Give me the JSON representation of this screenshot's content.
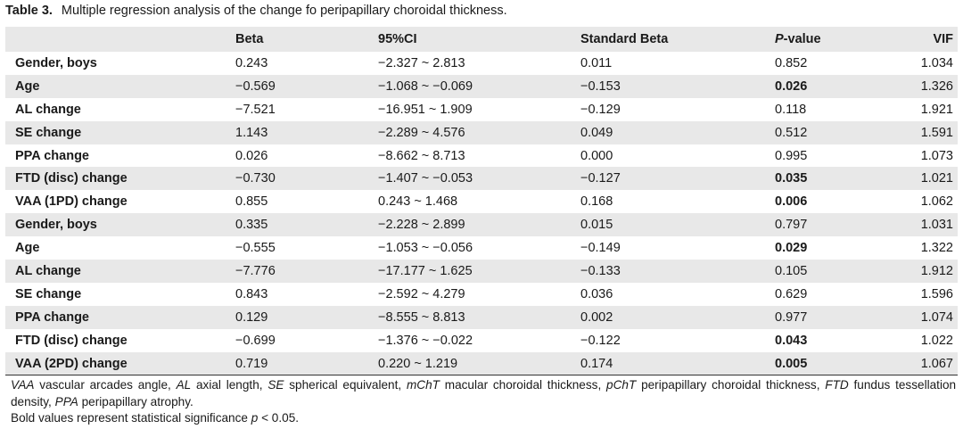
{
  "caption": {
    "label": "Table 3.",
    "title": "Multiple regression analysis of the change fo peripapillary choroidal thickness."
  },
  "table": {
    "headers": [
      "",
      "Beta",
      "95%CI",
      "Standard Beta",
      "value",
      "VIF"
    ],
    "header_pvalue_prefix": "P",
    "rows": [
      {
        "variable": "Gender, boys",
        "beta": "0.243",
        "ci": "−2.327 ~ 2.813",
        "std_beta": "0.011",
        "p": "0.852",
        "p_bold": false,
        "vif": "1.034"
      },
      {
        "variable": "Age",
        "beta": "−0.569",
        "ci": "−1.068 ~ −0.069",
        "std_beta": "−0.153",
        "p": "0.026",
        "p_bold": true,
        "vif": "1.326"
      },
      {
        "variable": "AL change",
        "beta": "−7.521",
        "ci": "−16.951 ~ 1.909",
        "std_beta": "−0.129",
        "p": "0.118",
        "p_bold": false,
        "vif": "1.921"
      },
      {
        "variable": "SE change",
        "beta": "1.143",
        "ci": "−2.289 ~ 4.576",
        "std_beta": "0.049",
        "p": "0.512",
        "p_bold": false,
        "vif": "1.591"
      },
      {
        "variable": "PPA change",
        "beta": "0.026",
        "ci": "−8.662 ~ 8.713",
        "std_beta": "0.000",
        "p": "0.995",
        "p_bold": false,
        "vif": "1.073"
      },
      {
        "variable": "FTD (disc) change",
        "beta": "−0.730",
        "ci": "−1.407 ~ −0.053",
        "std_beta": "−0.127",
        "p": "0.035",
        "p_bold": true,
        "vif": "1.021"
      },
      {
        "variable": "VAA (1PD) change",
        "beta": "0.855",
        "ci": "0.243 ~ 1.468",
        "std_beta": "0.168",
        "p": "0.006",
        "p_bold": true,
        "vif": "1.062"
      },
      {
        "variable": "Gender, boys",
        "beta": "0.335",
        "ci": "−2.228 ~ 2.899",
        "std_beta": "0.015",
        "p": "0.797",
        "p_bold": false,
        "vif": "1.031"
      },
      {
        "variable": "Age",
        "beta": "−0.555",
        "ci": "−1.053 ~ −0.056",
        "std_beta": "−0.149",
        "p": "0.029",
        "p_bold": true,
        "vif": "1.322"
      },
      {
        "variable": "AL change",
        "beta": "−7.776",
        "ci": "−17.177 ~ 1.625",
        "std_beta": "−0.133",
        "p": "0.105",
        "p_bold": false,
        "vif": "1.912"
      },
      {
        "variable": "SE change",
        "beta": "0.843",
        "ci": "−2.592 ~ 4.279",
        "std_beta": "0.036",
        "p": "0.629",
        "p_bold": false,
        "vif": "1.596"
      },
      {
        "variable": "PPA change",
        "beta": "0.129",
        "ci": "−8.555 ~ 8.813",
        "std_beta": "0.002",
        "p": "0.977",
        "p_bold": false,
        "vif": "1.074"
      },
      {
        "variable": "FTD (disc) change",
        "beta": "−0.699",
        "ci": "−1.376 ~ −0.022",
        "std_beta": "−0.122",
        "p": "0.043",
        "p_bold": true,
        "vif": "1.022"
      },
      {
        "variable": "VAA (2PD) change",
        "beta": "0.719",
        "ci": "0.220 ~ 1.219",
        "std_beta": "0.174",
        "p": "0.005",
        "p_bold": true,
        "vif": "1.067"
      }
    ]
  },
  "footnotes": {
    "abbreviations": [
      {
        "abbr": "VAA",
        "text": "vascular arcades angle,"
      },
      {
        "abbr": "AL",
        "text": "axial length,"
      },
      {
        "abbr": "SE",
        "text": "spherical equivalent,"
      },
      {
        "abbr": "mChT",
        "text": "macular choroidal thickness,"
      },
      {
        "abbr": "pChT",
        "text": "peripapillary choroidal thickness,"
      },
      {
        "abbr": "FTD",
        "text": "fundus tessellation density,"
      },
      {
        "abbr": "PPA",
        "text": "peripapillary atrophy."
      }
    ],
    "significance_prefix": "Bold values represent statistical significance",
    "significance_symbol": "p",
    "significance_suffix": "< 0.05."
  }
}
